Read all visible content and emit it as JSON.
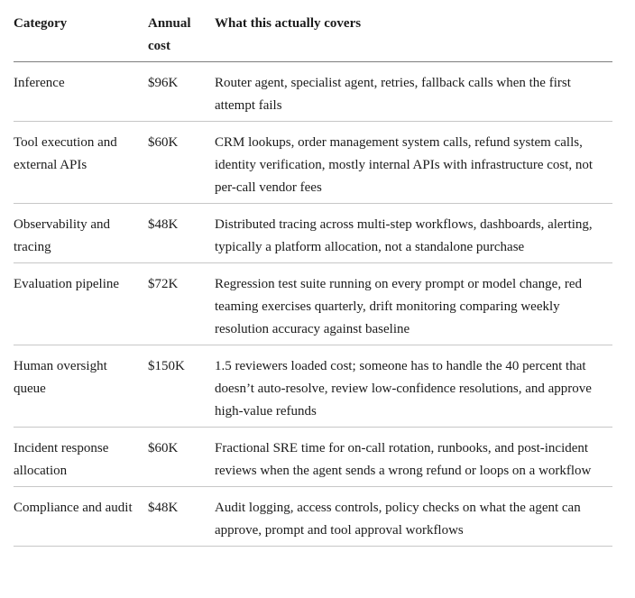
{
  "table": {
    "columns": [
      "Category",
      "Annual cost",
      "What this actually covers"
    ],
    "rows": [
      {
        "category": "Inference",
        "cost": "$96K",
        "covers": "Router agent, specialist agent, retries, fallback calls when the first attempt fails"
      },
      {
        "category": "Tool execution and external APIs",
        "cost": "$60K",
        "covers": "CRM lookups, order management system calls, refund system calls, identity verification, mostly internal APIs with infrastructure cost, not per-call vendor fees"
      },
      {
        "category": "Observability and tracing",
        "cost": "$48K",
        "covers": "Distributed tracing across multi-step workflows, dashboards, alerting, typically a platform allocation, not a standalone purchase"
      },
      {
        "category": "Evaluation pipeline",
        "cost": "$72K",
        "covers": "Regression test suite running on every prompt or model change, red teaming exercises quarterly, drift monitoring comparing weekly resolution accuracy against baseline"
      },
      {
        "category": "Human oversight queue",
        "cost": "$150K",
        "covers": "1.5 reviewers loaded cost; someone has to handle the 40 percent that doesn’t auto-resolve, review low-confidence resolutions, and approve high-value refunds"
      },
      {
        "category": "Incident response allocation",
        "cost": "$60K",
        "covers": "Fractional SRE time for on-call rotation, runbooks, and post-incident reviews when the agent sends a wrong refund or loops on a workflow"
      },
      {
        "category": "Compliance and audit",
        "cost": "$48K",
        "covers": "Audit logging, access controls, policy checks on what the agent can approve, prompt and tool approval workflows"
      }
    ]
  },
  "colors": {
    "text": "#1b1b1b",
    "header_rule": "#7d7d7d",
    "row_rule": "#c7c7c7",
    "background": "#ffffff"
  }
}
